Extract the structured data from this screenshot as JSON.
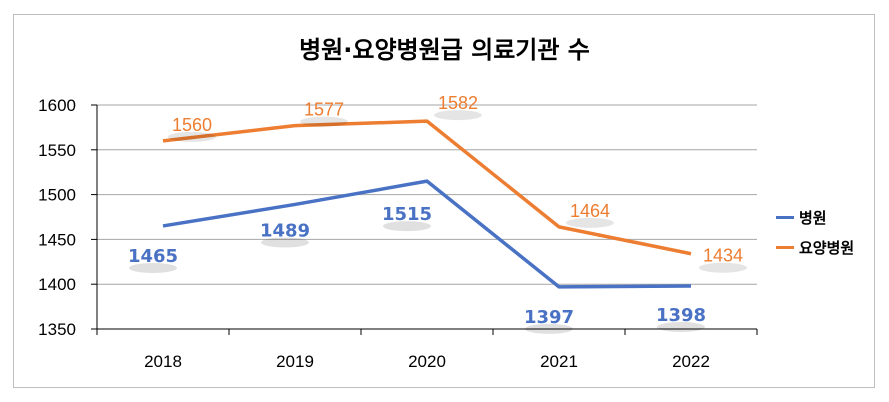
{
  "chart_data": {
    "type": "line",
    "title": "병원·요양병원급 의료기관 수",
    "categories": [
      "2018",
      "2019",
      "2020",
      "2021",
      "2022"
    ],
    "ylim": [
      1350,
      1600
    ],
    "yticks": [
      1350,
      1400,
      1450,
      1500,
      1550,
      1600
    ],
    "grid": true,
    "legend_position": "right",
    "series": [
      {
        "name": "병원",
        "color": "#4a72c4",
        "values": [
          1465,
          1489,
          1515,
          1397,
          1398
        ]
      },
      {
        "name": "요양병원",
        "color": "#ed7d31",
        "values": [
          1560,
          1577,
          1582,
          1464,
          1434
        ]
      }
    ]
  }
}
